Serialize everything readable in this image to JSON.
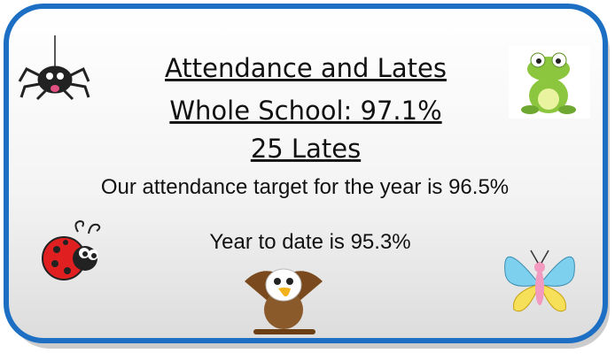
{
  "heading": {
    "line1": "Attendance and Lates",
    "line2": "Whole School: 97.1%",
    "line3": "25 Lates"
  },
  "body": {
    "target": "Our attendance target for the year is 96.5%",
    "to_date": "Year to date is 95.3%"
  }
}
